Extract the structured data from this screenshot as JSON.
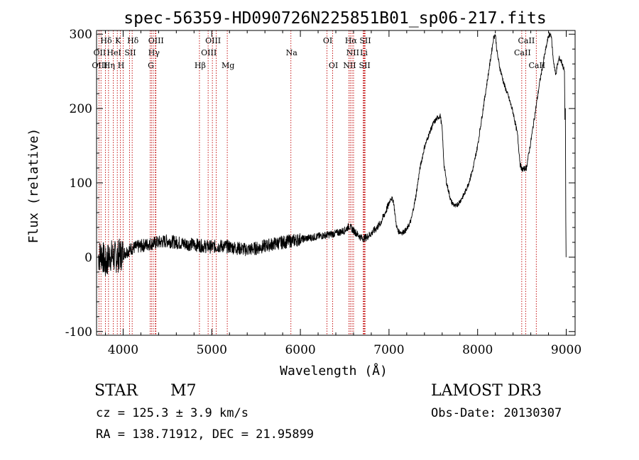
{
  "chart_data": {
    "type": "line",
    "title": "spec-56359-HD090726N225851B01_sp06-217.fits",
    "xlabel": "Wavelength (Å)",
    "ylabel": "Flux (relative)",
    "xlim": [
      3700,
      9100
    ],
    "ylim": [
      -105,
      305
    ],
    "xticks": [
      4000,
      5000,
      6000,
      7000,
      8000,
      9000
    ],
    "yticks": [
      -100,
      0,
      100,
      200,
      300
    ],
    "colors": {
      "spectrum": "#000000",
      "lines": "#c00000"
    },
    "spectrum": {
      "name": "flux",
      "anchors": [
        [
          3720,
          0
        ],
        [
          3760,
          5
        ],
        [
          3800,
          -10
        ],
        [
          3850,
          3
        ],
        [
          3900,
          0
        ],
        [
          3950,
          2
        ],
        [
          4000,
          5
        ],
        [
          4100,
          12
        ],
        [
          4200,
          15
        ],
        [
          4300,
          18
        ],
        [
          4400,
          20
        ],
        [
          4500,
          22
        ],
        [
          4600,
          20
        ],
        [
          4700,
          18
        ],
        [
          4800,
          17
        ],
        [
          4900,
          15
        ],
        [
          5000,
          14
        ],
        [
          5100,
          15
        ],
        [
          5200,
          14
        ],
        [
          5300,
          12
        ],
        [
          5400,
          10
        ],
        [
          5500,
          12
        ],
        [
          5600,
          15
        ],
        [
          5700,
          18
        ],
        [
          5800,
          20
        ],
        [
          5900,
          22
        ],
        [
          6000,
          24
        ],
        [
          6100,
          26
        ],
        [
          6200,
          28
        ],
        [
          6300,
          30
        ],
        [
          6400,
          32
        ],
        [
          6500,
          36
        ],
        [
          6550,
          42
        ],
        [
          6600,
          36
        ],
        [
          6650,
          30
        ],
        [
          6700,
          25
        ],
        [
          6750,
          27
        ],
        [
          6800,
          32
        ],
        [
          6850,
          38
        ],
        [
          6900,
          45
        ],
        [
          6950,
          58
        ],
        [
          7000,
          72
        ],
        [
          7020,
          80
        ],
        [
          7050,
          76
        ],
        [
          7080,
          45
        ],
        [
          7100,
          35
        ],
        [
          7150,
          33
        ],
        [
          7200,
          37
        ],
        [
          7250,
          50
        ],
        [
          7300,
          80
        ],
        [
          7350,
          120
        ],
        [
          7400,
          148
        ],
        [
          7450,
          165
        ],
        [
          7500,
          180
        ],
        [
          7550,
          188
        ],
        [
          7580,
          190
        ],
        [
          7600,
          172
        ],
        [
          7620,
          125
        ],
        [
          7650,
          100
        ],
        [
          7700,
          75
        ],
        [
          7750,
          68
        ],
        [
          7800,
          75
        ],
        [
          7850,
          85
        ],
        [
          7900,
          100
        ],
        [
          7950,
          120
        ],
        [
          8000,
          150
        ],
        [
          8050,
          190
        ],
        [
          8100,
          230
        ],
        [
          8150,
          270
        ],
        [
          8180,
          295
        ],
        [
          8200,
          300
        ],
        [
          8220,
          275
        ],
        [
          8250,
          255
        ],
        [
          8300,
          232
        ],
        [
          8350,
          215
        ],
        [
          8400,
          195
        ],
        [
          8450,
          165
        ],
        [
          8480,
          125
        ],
        [
          8500,
          118
        ],
        [
          8550,
          120
        ],
        [
          8600,
          155
        ],
        [
          8650,
          195
        ],
        [
          8700,
          235
        ],
        [
          8750,
          268
        ],
        [
          8800,
          298
        ],
        [
          8830,
          300
        ],
        [
          8850,
          270
        ],
        [
          8880,
          245
        ],
        [
          8900,
          258
        ],
        [
          8920,
          268
        ],
        [
          8950,
          262
        ],
        [
          8980,
          250
        ],
        [
          9000,
          0
        ]
      ]
    },
    "spectral_lines": [
      {
        "label": "Hδ",
        "x": 3800,
        "row": 1
      },
      {
        "label": "K",
        "x": 3934,
        "row": 1
      },
      {
        "label": "Hδ",
        "x": 4102,
        "row": 1
      },
      {
        "label": "OIII",
        "x": 4363,
        "row": 1
      },
      {
        "label": "OIII",
        "x": 5007,
        "row": 1
      },
      {
        "label": "OI",
        "x": 6300,
        "row": 1
      },
      {
        "label": "Hα",
        "x": 6563,
        "row": 1
      },
      {
        "label": "SII",
        "x": 6724,
        "row": 1
      },
      {
        "label": "CaII",
        "x": 8542,
        "row": 1
      },
      {
        "label": "OII",
        "x": 3727,
        "row": 2
      },
      {
        "label": "HeI",
        "x": 3889,
        "row": 2
      },
      {
        "label": "SII",
        "x": 4072,
        "row": 2
      },
      {
        "label": "Hγ",
        "x": 4340,
        "row": 2
      },
      {
        "label": "OIII",
        "x": 4959,
        "row": 2
      },
      {
        "label": "Na",
        "x": 5893,
        "row": 2
      },
      {
        "label": "NII",
        "x": 6583,
        "row": 2
      },
      {
        "label": "Li",
        "x": 6708,
        "row": 2
      },
      {
        "label": "CaII",
        "x": 8498,
        "row": 2
      },
      {
        "label": "OIII",
        "x": 3727,
        "row": 3
      },
      {
        "label": "Hη",
        "x": 3835,
        "row": 3
      },
      {
        "label": "H",
        "x": 3969,
        "row": 3
      },
      {
        "label": "G",
        "x": 4305,
        "row": 3
      },
      {
        "label": "Hβ",
        "x": 4861,
        "row": 3
      },
      {
        "label": "Mg",
        "x": 5175,
        "row": 3
      },
      {
        "label": "OI",
        "x": 6364,
        "row": 3
      },
      {
        "label": "NII",
        "x": 6548,
        "row": 3
      },
      {
        "label": "SII",
        "x": 6717,
        "row": 3
      },
      {
        "label": "CaII",
        "x": 8662,
        "row": 3
      }
    ],
    "extra_line_positions": [
      3750,
      4000,
      4320,
      4370,
      5050,
      6600,
      6730
    ]
  },
  "info": {
    "object_class": "STAR",
    "subclass": "M7",
    "survey": "LAMOST DR3",
    "cz": "cz = 125.3 ± 3.9 km/s",
    "obs_date": "Obs-Date: 20130307",
    "coords": "RA = 138.71912, DEC =  21.95899"
  }
}
